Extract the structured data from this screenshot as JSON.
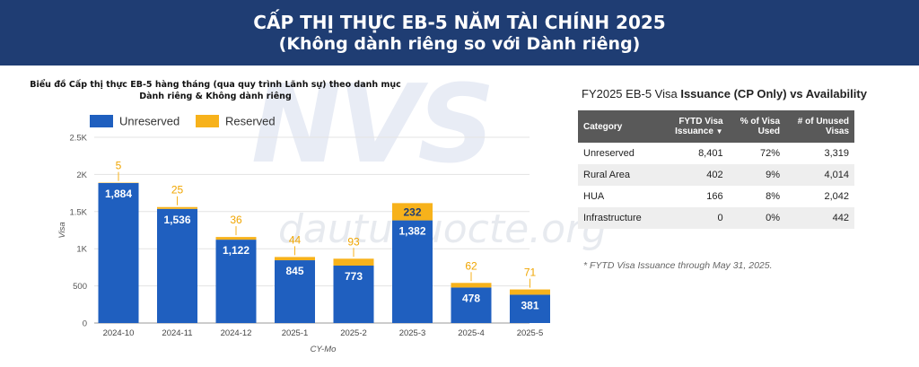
{
  "header": {
    "line1": "CẤP THỊ THỰC EB-5 NĂM TÀI CHÍNH 2025",
    "line2": "(Không dành riêng so với Dành riêng)"
  },
  "watermark": {
    "logo": "NVS",
    "site": "dautuquocte.org"
  },
  "chart_data": {
    "type": "bar",
    "stacked": true,
    "title": "Biểu đồ Cấp thị thực EB-5 hàng tháng (qua quy trình Lãnh sự) theo danh mục Dành riêng & Không dành riêng",
    "xlabel": "CY-Mo",
    "ylabel": "Visa",
    "ylim": [
      0,
      2500
    ],
    "yticks": [
      0,
      500,
      1000,
      1500,
      2000,
      2500
    ],
    "ytick_labels": [
      "0",
      "500",
      "1K",
      "1.5K",
      "2K",
      "2.5K"
    ],
    "grid": true,
    "legend_position": "top-left",
    "categories": [
      "2024-10",
      "2024-11",
      "2024-12",
      "2025-1",
      "2025-2",
      "2025-3",
      "2025-4",
      "2025-5"
    ],
    "series": [
      {
        "name": "Unreserved",
        "color": "#1f5fbf",
        "values": [
          1884,
          1536,
          1122,
          845,
          773,
          1382,
          478,
          381
        ]
      },
      {
        "name": "Reserved",
        "color": "#f7b21b",
        "values": [
          5,
          25,
          36,
          44,
          93,
          232,
          62,
          71
        ]
      }
    ]
  },
  "table": {
    "title_prefix": "FY2025 EB-5 Visa",
    "title_bold": "Issuance (CP Only) vs Availability",
    "headers": [
      "Category",
      "FYTD Visa Issuance",
      "% of Visa Used",
      "# of Unused Visas"
    ],
    "sort_icon": "sort-down-icon",
    "rows": [
      [
        "Unreserved",
        "8,401",
        "72%",
        "3,319"
      ],
      [
        "Rural Area",
        "402",
        "9%",
        "4,014"
      ],
      [
        "HUA",
        "166",
        "8%",
        "2,042"
      ],
      [
        "Infrastructure",
        "0",
        "0%",
        "442"
      ]
    ],
    "footnote": "* FYTD Visa Issuance through May 31, 2025."
  }
}
